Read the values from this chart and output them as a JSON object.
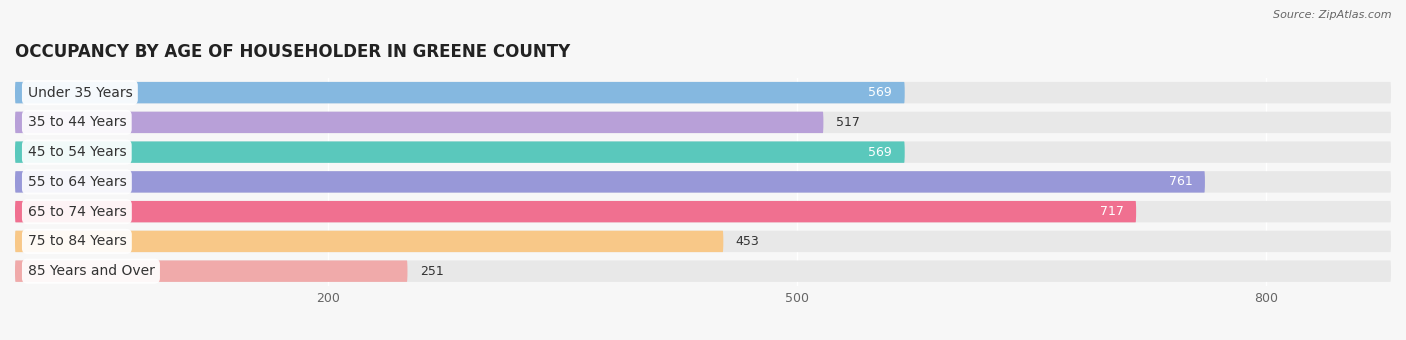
{
  "title": "OCCUPANCY BY AGE OF HOUSEHOLDER IN GREENE COUNTY",
  "source": "Source: ZipAtlas.com",
  "categories": [
    "Under 35 Years",
    "35 to 44 Years",
    "45 to 54 Years",
    "55 to 64 Years",
    "65 to 74 Years",
    "75 to 84 Years",
    "85 Years and Over"
  ],
  "values": [
    569,
    517,
    569,
    761,
    717,
    453,
    251
  ],
  "bar_colors": [
    "#85b8e0",
    "#b8a0d8",
    "#5ac8bc",
    "#9898d8",
    "#f07090",
    "#f8c888",
    "#f0aaaa"
  ],
  "xlim": [
    0,
    880
  ],
  "xticks": [
    200,
    500,
    800
  ],
  "bg_color": "#f7f7f7",
  "bar_bg_color": "#e8e8e8",
  "title_fontsize": 12,
  "label_fontsize": 10,
  "value_fontsize": 9,
  "bar_height": 0.72,
  "bar_gap": 0.28
}
